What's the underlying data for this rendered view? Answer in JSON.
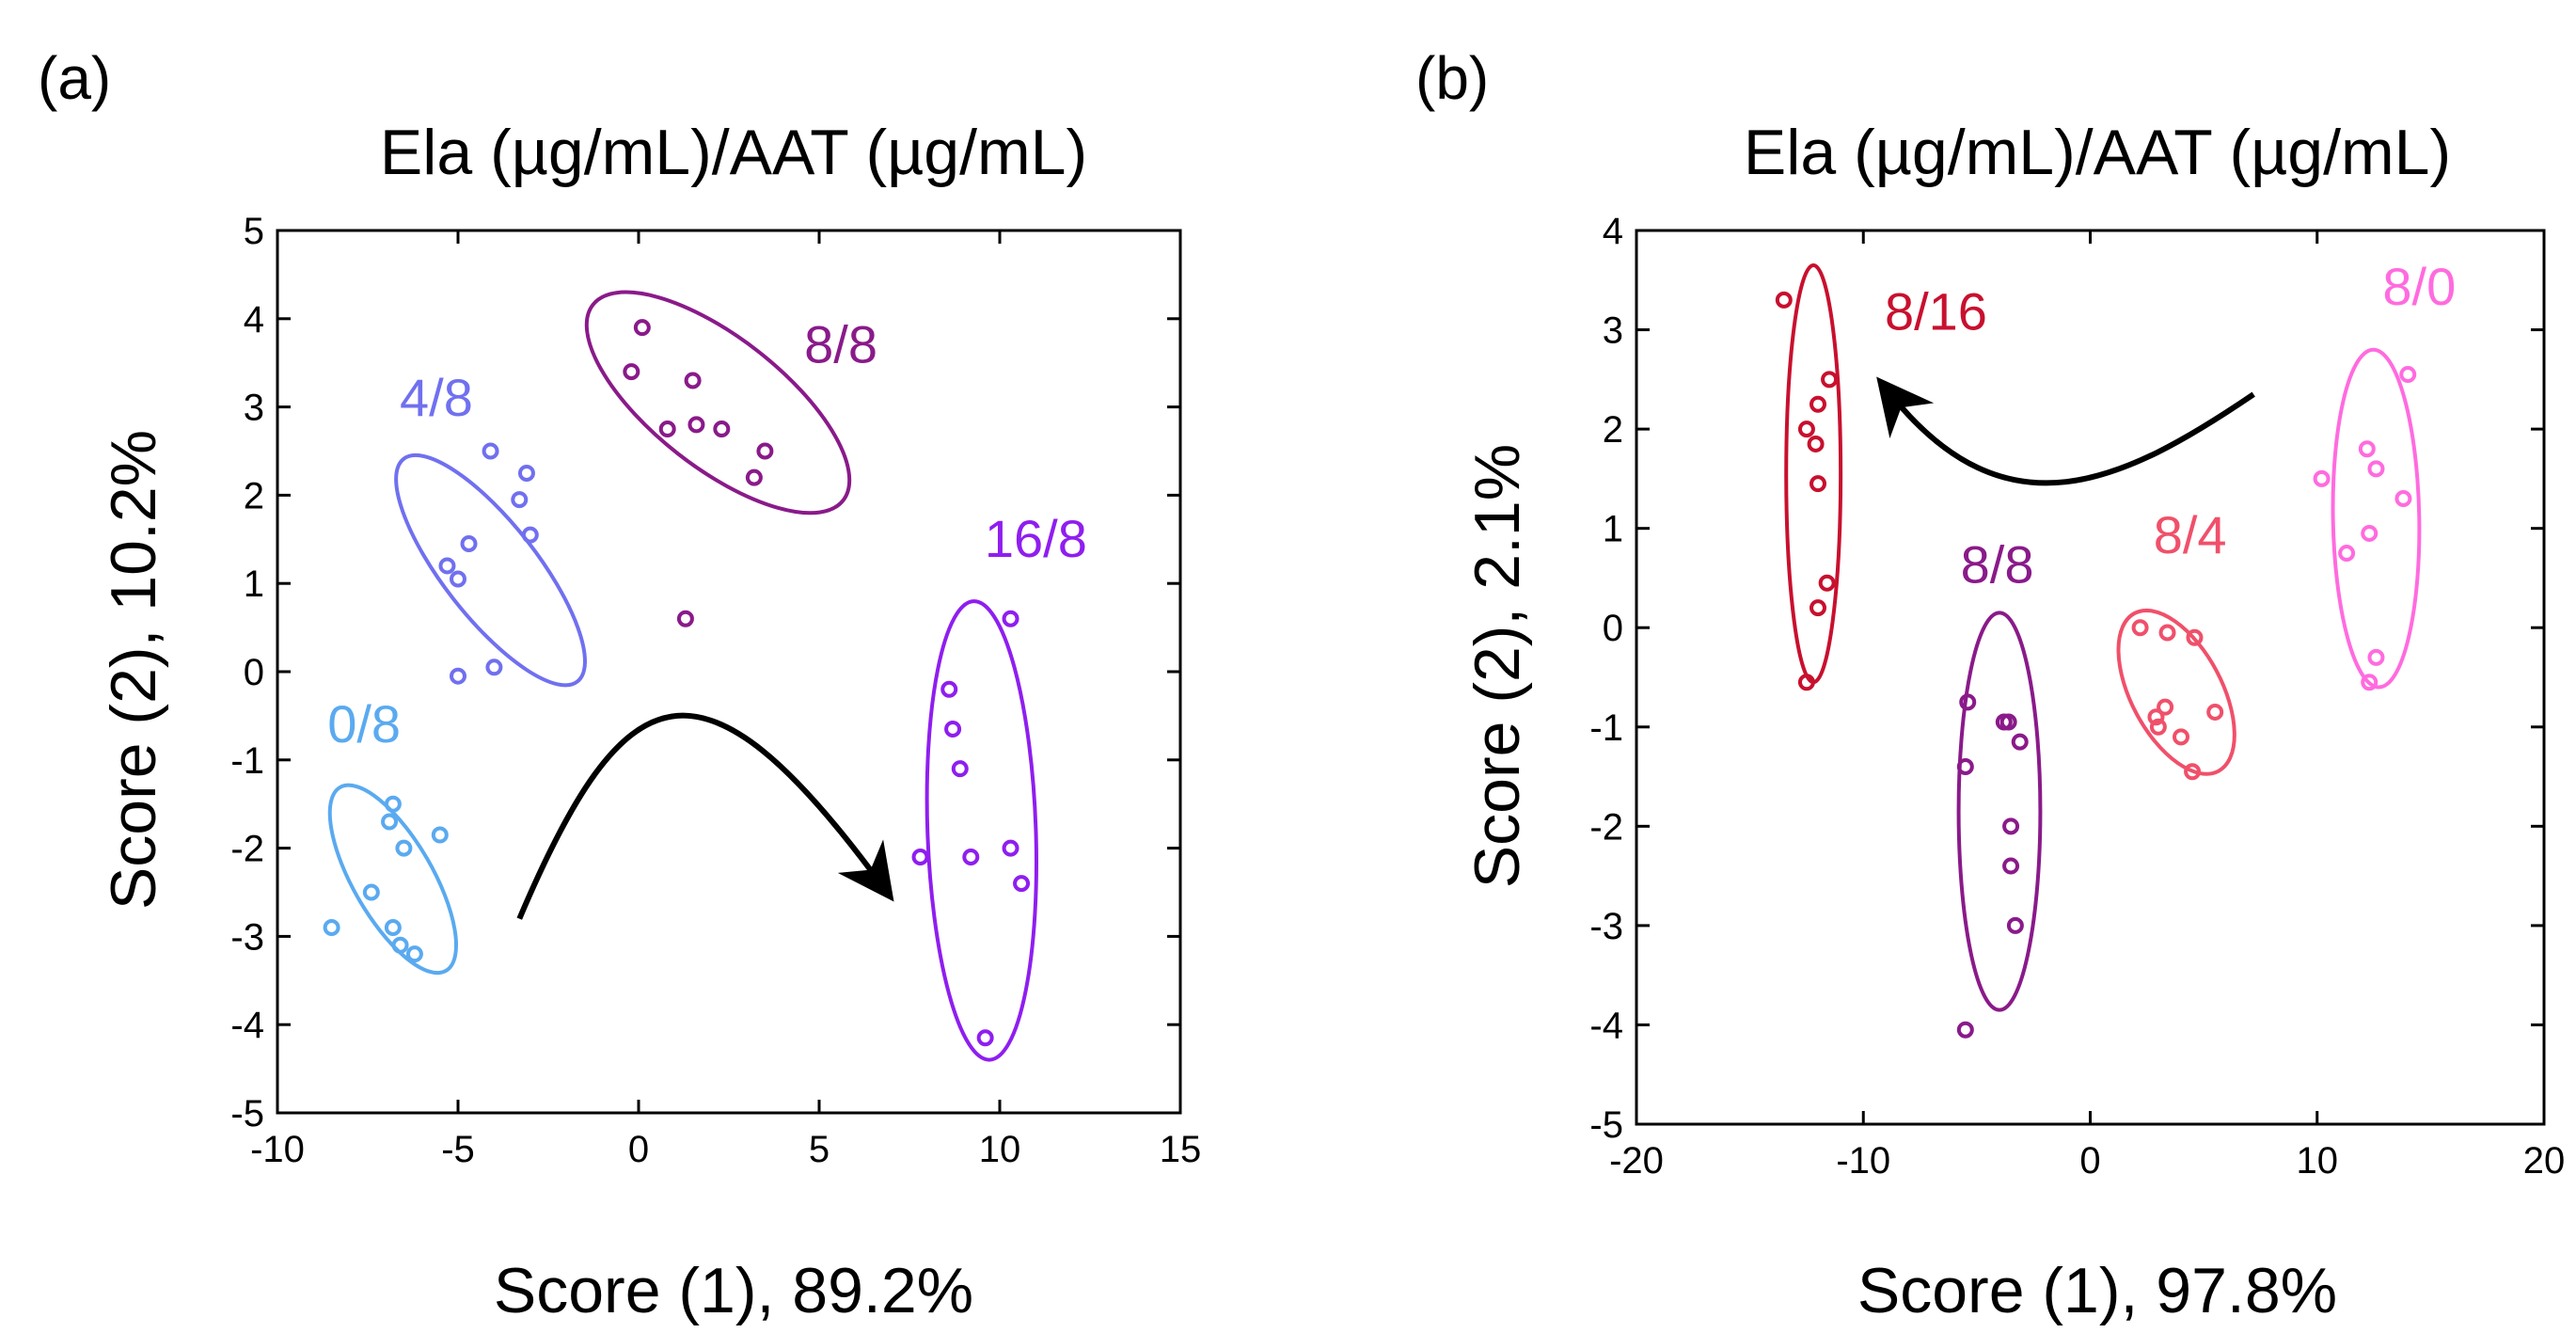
{
  "chart_data": [
    {
      "type": "scatter",
      "panel_label": "(a)",
      "title": "Ela (µg/mL)/AAT (µg/mL)",
      "xlabel": "Score (1), 89.2%",
      "ylabel": "Score (2), 10.2%",
      "xlim": [
        -10,
        15
      ],
      "ylim": [
        -5,
        5
      ],
      "xticks": [
        -10,
        -5,
        0,
        5,
        10,
        15
      ],
      "yticks": [
        -5,
        -4,
        -3,
        -2,
        -1,
        0,
        1,
        2,
        3,
        4,
        5
      ],
      "grid": false,
      "series": [
        {
          "name": "0/8",
          "color": "#5aaaf0",
          "points": [
            [
              -8.5,
              -2.9
            ],
            [
              -7.4,
              -2.5
            ],
            [
              -6.8,
              -1.5
            ],
            [
              -6.9,
              -1.7
            ],
            [
              -6.5,
              -2.0
            ],
            [
              -6.8,
              -2.9
            ],
            [
              -6.6,
              -3.1
            ],
            [
              -6.2,
              -3.2
            ],
            [
              -5.5,
              -1.85
            ]
          ],
          "ellipse": {
            "cx": -6.8,
            "cy": -2.35,
            "rx": 1.1,
            "ry": 1.2,
            "angle_deg": -30
          },
          "label_pos": [
            -7.6,
            -0.8
          ]
        },
        {
          "name": "4/8",
          "color": "#7070f0",
          "points": [
            [
              -5.3,
              1.2
            ],
            [
              -5.0,
              1.05
            ],
            [
              -4.7,
              1.45
            ],
            [
              -5.0,
              -0.05
            ],
            [
              -4.0,
              0.05
            ],
            [
              -4.1,
              2.5
            ],
            [
              -3.3,
              1.95
            ],
            [
              -3.1,
              2.25
            ],
            [
              -3.0,
              1.55
            ]
          ],
          "ellipse": {
            "cx": -4.1,
            "cy": 1.15,
            "rx": 1.3,
            "ry": 1.6,
            "angle_deg": -38
          },
          "label_pos": [
            -5.6,
            2.9
          ]
        },
        {
          "name": "8/8",
          "color": "#8a1a8a",
          "points": [
            [
              -0.2,
              3.4
            ],
            [
              0.1,
              3.9
            ],
            [
              0.8,
              2.75
            ],
            [
              1.5,
              3.3
            ],
            [
              1.6,
              2.8
            ],
            [
              2.3,
              2.75
            ],
            [
              3.2,
              2.2
            ],
            [
              3.5,
              2.5
            ],
            [
              1.3,
              0.6
            ]
          ],
          "ellipse": {
            "cx": 2.2,
            "cy": 3.05,
            "rx": 1.8,
            "ry": 1.8,
            "angle_deg": -52
          },
          "label_pos": [
            5.6,
            3.5
          ]
        },
        {
          "name": "16/8",
          "color": "#8f1eef",
          "points": [
            [
              7.8,
              -2.1
            ],
            [
              8.6,
              -0.2
            ],
            [
              8.7,
              -0.65
            ],
            [
              8.9,
              -1.1
            ],
            [
              9.2,
              -2.1
            ],
            [
              9.6,
              -4.15
            ],
            [
              10.3,
              0.6
            ],
            [
              10.3,
              -2.0
            ],
            [
              10.6,
              -2.4
            ]
          ],
          "ellipse": {
            "cx": 9.5,
            "cy": -1.8,
            "rx": 1.5,
            "ry": 2.6,
            "angle_deg": -2
          },
          "label_pos": [
            11.0,
            1.3
          ]
        }
      ],
      "arrow": [
        [
          -3.3,
          -2.8
        ],
        [
          -0.4,
          0.0
        ],
        [
          1.7,
          0.38
        ],
        [
          6.7,
          -2.4
        ]
      ]
    },
    {
      "type": "scatter",
      "panel_label": "(b)",
      "title": "Ela (µg/mL)/AAT (µg/mL)",
      "xlabel": "Score (1), 97.8%",
      "ylabel": "Score (2), 2.1%",
      "xlim": [
        -20,
        20
      ],
      "ylim": [
        -5,
        4
      ],
      "xticks": [
        -20,
        -10,
        0,
        10,
        20
      ],
      "yticks": [
        -5,
        -4,
        -3,
        -2,
        -1,
        0,
        1,
        2,
        3,
        4
      ],
      "grid": false,
      "series": [
        {
          "name": "8/16",
          "color": "#c8102e",
          "points": [
            [
              -13.5,
              3.3
            ],
            [
              -12.5,
              2.0
            ],
            [
              -12.0,
              2.25
            ],
            [
              -11.5,
              2.5
            ],
            [
              -12.1,
              1.85
            ],
            [
              -12.0,
              1.45
            ],
            [
              -11.6,
              0.45
            ],
            [
              -12.0,
              0.2
            ],
            [
              -12.5,
              -0.55
            ]
          ],
          "ellipse": {
            "cx": -12.2,
            "cy": 1.55,
            "rx": 1.2,
            "ry": 2.1,
            "angle_deg": 0
          },
          "label_pos": [
            -6.8,
            3.0
          ]
        },
        {
          "name": "8/8",
          "color": "#8a1a8a",
          "points": [
            [
              -5.4,
              -0.75
            ],
            [
              -5.5,
              -1.4
            ],
            [
              -3.8,
              -0.95
            ],
            [
              -3.6,
              -0.95
            ],
            [
              -3.1,
              -1.15
            ],
            [
              -3.5,
              -2.0
            ],
            [
              -3.5,
              -2.4
            ],
            [
              -3.3,
              -3.0
            ],
            [
              -5.5,
              -4.05
            ]
          ],
          "ellipse": {
            "cx": -4.0,
            "cy": -1.85,
            "rx": 1.8,
            "ry": 2.0,
            "angle_deg": 0
          },
          "label_pos": [
            -4.1,
            0.45
          ]
        },
        {
          "name": "8/4",
          "color": "#f0506a",
          "points": [
            [
              2.2,
              0.0
            ],
            [
              3.4,
              -0.05
            ],
            [
              3.3,
              -0.8
            ],
            [
              2.9,
              -0.9
            ],
            [
              3.0,
              -1.0
            ],
            [
              4.0,
              -1.1
            ],
            [
              4.6,
              -0.1
            ],
            [
              4.5,
              -1.45
            ],
            [
              5.5,
              -0.85
            ]
          ],
          "ellipse": {
            "cx": 3.8,
            "cy": -0.65,
            "rx": 2.0,
            "ry": 0.9,
            "angle_deg": -28
          },
          "label_pos": [
            4.4,
            0.75
          ]
        },
        {
          "name": "8/0",
          "color": "#ff6bdf",
          "points": [
            [
              10.2,
              1.5
            ],
            [
              11.3,
              0.75
            ],
            [
              12.2,
              1.8
            ],
            [
              12.6,
              1.6
            ],
            [
              12.3,
              0.95
            ],
            [
              13.8,
              1.3
            ],
            [
              14.0,
              2.55
            ],
            [
              12.6,
              -0.3
            ],
            [
              12.3,
              -0.55
            ]
          ],
          "ellipse": {
            "cx": 12.6,
            "cy": 1.1,
            "rx": 1.9,
            "ry": 1.7,
            "angle_deg": -1
          },
          "label_pos": [
            14.5,
            3.25
          ]
        }
      ],
      "arrow": [
        [
          7.2,
          2.35
        ],
        [
          1.4,
          1.45
        ],
        [
          -3.7,
          0.9
        ],
        [
          -8.8,
          2.35
        ]
      ]
    }
  ]
}
